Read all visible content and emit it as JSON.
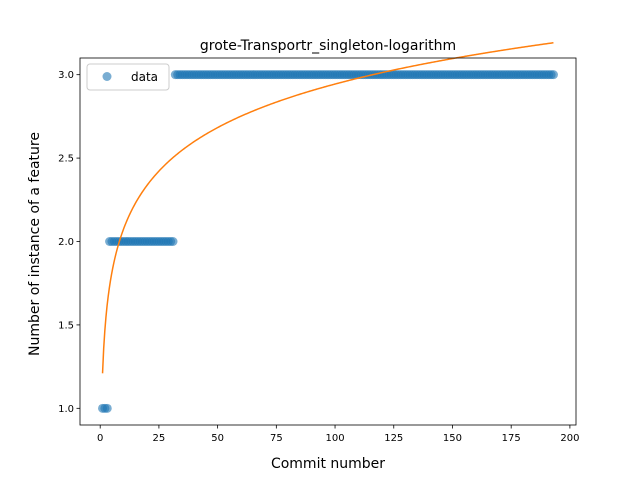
{
  "chart_data": {
    "type": "scatter",
    "title": "grote-Transportr_singleton-logarithm",
    "xlabel": "Commit number",
    "ylabel": "Number of instance of a feature",
    "xlim": [
      -8.6,
      202.6
    ],
    "ylim": [
      0.9,
      3.1
    ],
    "xticks": [
      0,
      25,
      50,
      75,
      100,
      125,
      150,
      175,
      200
    ],
    "yticks": [
      1.0,
      1.5,
      2.0,
      2.5,
      3.0
    ],
    "xtick_labels": [
      "0",
      "25",
      "50",
      "75",
      "100",
      "125",
      "150",
      "175",
      "200"
    ],
    "ytick_labels": [
      "1.0",
      "1.5",
      "2.0",
      "2.5",
      "3.0"
    ],
    "grid": false,
    "legend_position": "upper-left",
    "series": [
      {
        "name": "data",
        "kind": "scatter",
        "color": "#1f77b4",
        "segments": [
          {
            "x_start": 1,
            "x_end": 3,
            "y": 1
          },
          {
            "x_start": 4,
            "x_end": 31,
            "y": 2
          },
          {
            "x_start": 32,
            "x_end": 193,
            "y": 3
          }
        ]
      },
      {
        "kind": "line",
        "color": "#ff7f0e",
        "fit": {
          "function": "a + b*ln(x)",
          "a": 1.21,
          "b": 0.3765
        },
        "x_range": [
          1,
          193
        ]
      }
    ]
  }
}
